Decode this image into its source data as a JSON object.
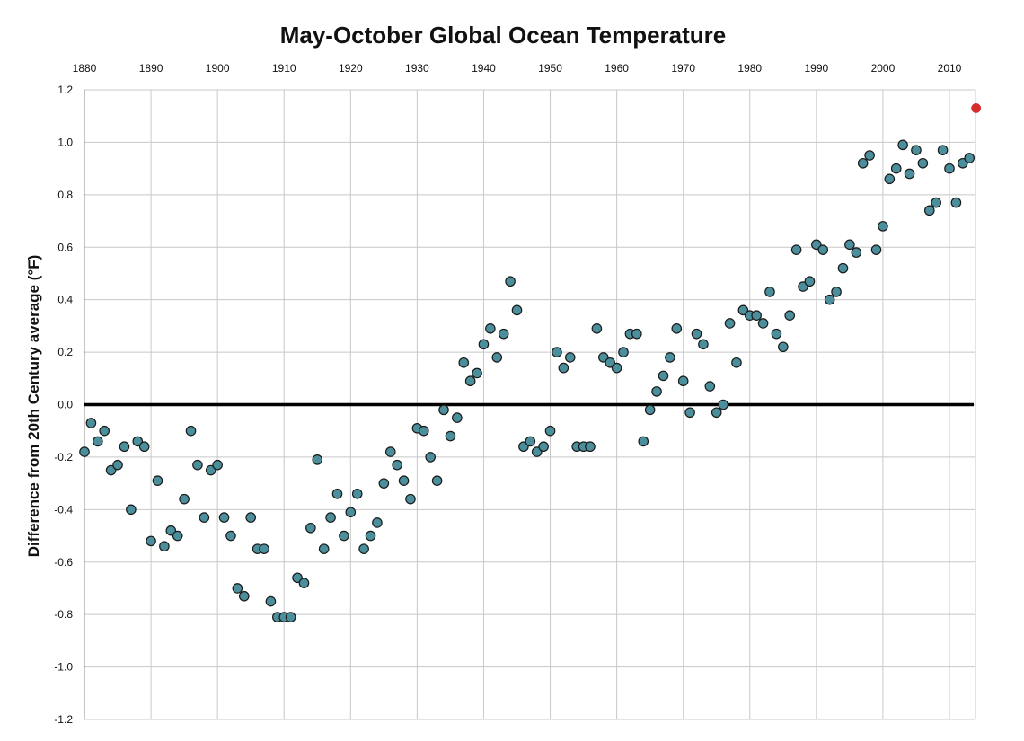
{
  "chart_data": {
    "type": "scatter",
    "title": "May-October Global Ocean Temperature",
    "xlabel": "",
    "ylabel": "Difference from 20th Century average (°F)",
    "xlim": [
      1880,
      2014
    ],
    "ylim": [
      -1.2,
      1.2
    ],
    "x_ticks": [
      1880,
      1890,
      1900,
      1910,
      1920,
      1930,
      1940,
      1950,
      1960,
      1970,
      1980,
      1990,
      2000,
      2010
    ],
    "y_ticks": [
      "1.2",
      "1.0",
      "0.8",
      "0.6",
      "0.4",
      "0.2",
      "0.0",
      "-0.2",
      "-0.4",
      "-0.6",
      "-0.8",
      "-1.0",
      "-1.2"
    ],
    "grid": true,
    "zero_line": true,
    "colors": {
      "point": "#4a8f9b",
      "point_edge": "#1a1a1a",
      "highlight": "#d82b2b",
      "grid": "#c8c8c8",
      "axis": "#000000"
    },
    "x": [
      1880,
      1881,
      1882,
      1883,
      1884,
      1885,
      1886,
      1887,
      1888,
      1889,
      1890,
      1891,
      1892,
      1893,
      1894,
      1895,
      1896,
      1897,
      1898,
      1899,
      1900,
      1901,
      1902,
      1903,
      1904,
      1905,
      1906,
      1907,
      1908,
      1909,
      1910,
      1911,
      1912,
      1913,
      1914,
      1915,
      1916,
      1917,
      1918,
      1919,
      1920,
      1921,
      1922,
      1923,
      1924,
      1925,
      1926,
      1927,
      1928,
      1929,
      1930,
      1931,
      1932,
      1933,
      1934,
      1935,
      1936,
      1937,
      1938,
      1939,
      1940,
      1941,
      1942,
      1943,
      1944,
      1945,
      1946,
      1947,
      1948,
      1949,
      1950,
      1951,
      1952,
      1953,
      1954,
      1955,
      1956,
      1957,
      1958,
      1959,
      1960,
      1961,
      1962,
      1963,
      1964,
      1965,
      1966,
      1967,
      1968,
      1969,
      1970,
      1971,
      1972,
      1973,
      1974,
      1975,
      1976,
      1977,
      1978,
      1979,
      1980,
      1981,
      1982,
      1983,
      1984,
      1985,
      1986,
      1987,
      1988,
      1989,
      1990,
      1991,
      1992,
      1993,
      1994,
      1995,
      1996,
      1997,
      1998,
      1999,
      2000,
      2001,
      2002,
      2003,
      2004,
      2005,
      2006,
      2007,
      2008,
      2009,
      2010,
      2011,
      2012,
      2013,
      2014
    ],
    "series": [
      {
        "values": [
          -0.18,
          -0.07,
          -0.14,
          -0.1,
          -0.25,
          -0.23,
          -0.16,
          -0.4,
          -0.14,
          -0.16,
          -0.52,
          -0.29,
          -0.54,
          -0.48,
          -0.5,
          -0.36,
          -0.1,
          -0.23,
          -0.43,
          -0.25,
          -0.23,
          -0.43,
          -0.5,
          -0.7,
          -0.73,
          -0.43,
          -0.55,
          -0.55,
          -0.75,
          -0.81,
          -0.81,
          -0.81,
          -0.66,
          -0.68,
          -0.47,
          -0.21,
          -0.55,
          -0.43,
          -0.34,
          -0.5,
          -0.41,
          -0.34,
          -0.55,
          -0.5,
          -0.45,
          -0.3,
          -0.18,
          -0.23,
          -0.29,
          -0.36,
          -0.09,
          -0.1,
          -0.2,
          -0.29,
          -0.02,
          -0.12,
          -0.05,
          0.16,
          0.09,
          0.12,
          0.23,
          0.29,
          0.18,
          0.27,
          0.47,
          0.36,
          -0.16,
          -0.14,
          -0.18,
          -0.16,
          -0.1,
          0.2,
          0.14,
          0.18,
          -0.16,
          -0.16,
          -0.16,
          0.29,
          0.18,
          0.16,
          0.14,
          0.2,
          0.27,
          0.27,
          -0.14,
          -0.02,
          0.05,
          0.11,
          0.18,
          0.29,
          0.09,
          -0.03,
          0.27,
          0.23,
          0.07,
          -0.03,
          0.0,
          0.31,
          0.16,
          0.36,
          0.34,
          0.34,
          0.31,
          0.43,
          0.27,
          0.22,
          0.34,
          0.59,
          0.45,
          0.47,
          0.61,
          0.59,
          0.4,
          0.43,
          0.52,
          0.61,
          0.58,
          0.92,
          0.95,
          0.59,
          0.68,
          0.86,
          0.9,
          0.99,
          0.88,
          0.97,
          0.92,
          0.74,
          0.77,
          0.97,
          0.9,
          0.77,
          0.92,
          0.94,
          1.13
        ]
      }
    ],
    "highlight_year": 2014
  }
}
